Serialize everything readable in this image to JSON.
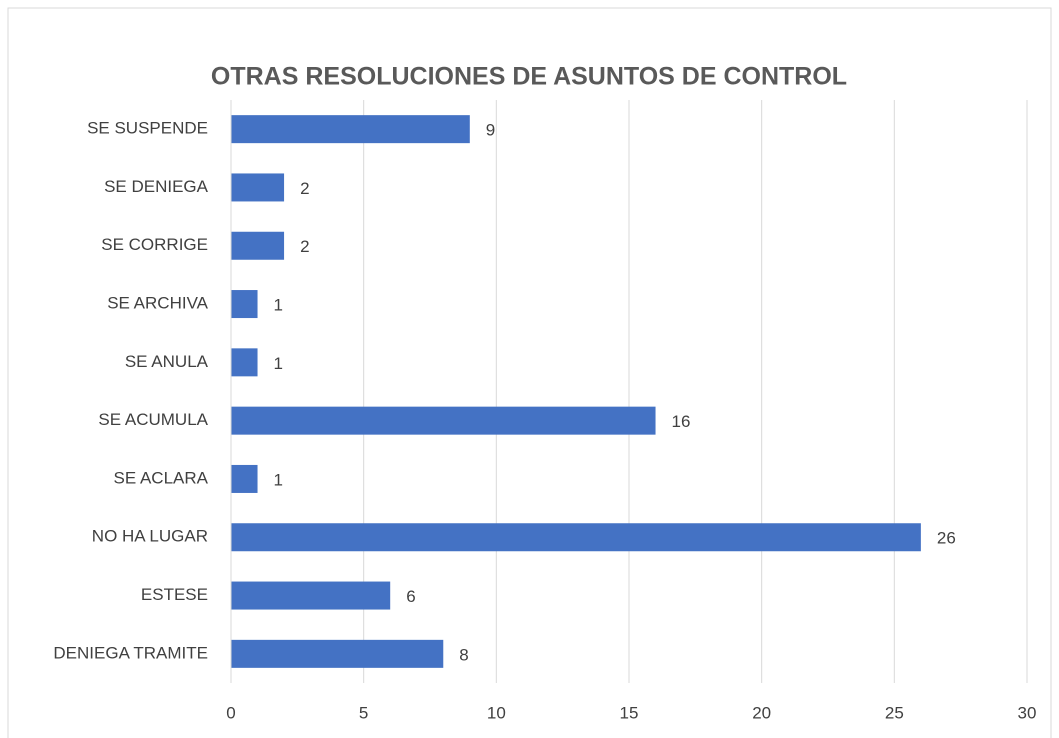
{
  "chart_data": {
    "type": "bar",
    "orientation": "horizontal",
    "title": "OTRAS RESOLUCIONES DE ASUNTOS DE CONTROL",
    "categories": [
      "SE SUSPENDE",
      "SE DENIEGA",
      "SE CORRIGE",
      "SE ARCHIVA",
      "SE ANULA",
      "SE ACUMULA",
      "SE ACLARA",
      "NO HA LUGAR",
      "ESTESE",
      "DENIEGA TRAMITE"
    ],
    "values": [
      9,
      2,
      2,
      1,
      1,
      16,
      1,
      26,
      6,
      8
    ],
    "color": "#4472c4",
    "xlim": [
      0,
      30
    ],
    "xticks": [
      0,
      5,
      10,
      15,
      20,
      25,
      30
    ],
    "grid": true
  }
}
